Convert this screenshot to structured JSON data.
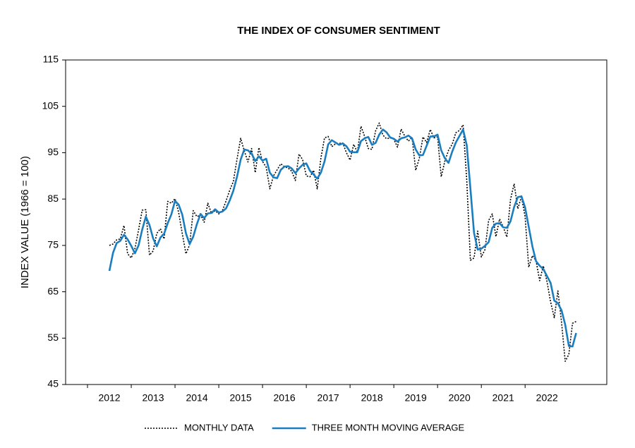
{
  "chart_data": {
    "type": "line",
    "title": "THE INDEX OF CONSUMER SENTIMENT",
    "y_label": "INDEX VALUE (1966 = 100)",
    "categories": [
      "2012",
      null,
      null,
      null,
      null,
      null,
      null,
      null,
      null,
      null,
      null,
      null,
      "2013",
      null,
      null,
      null,
      null,
      null,
      null,
      null,
      null,
      null,
      null,
      null,
      "2014",
      null,
      null,
      null,
      null,
      null,
      null,
      null,
      null,
      null,
      null,
      null,
      "2015",
      null,
      null,
      null,
      null,
      null,
      null,
      null,
      null,
      null,
      null,
      null,
      "2016",
      null,
      null,
      null,
      null,
      null,
      null,
      null,
      null,
      null,
      null,
      null,
      "2017",
      null,
      null,
      null,
      null,
      null,
      null,
      null,
      null,
      null,
      null,
      null,
      "2018",
      null,
      null,
      null,
      null,
      null,
      null,
      null,
      null,
      null,
      null,
      null,
      "2019",
      null,
      null,
      null,
      null,
      null,
      null,
      null,
      null,
      null,
      null,
      null,
      "2020",
      null,
      null,
      null,
      null,
      null,
      null,
      null,
      null,
      null,
      null,
      null,
      "2021",
      null,
      null,
      null,
      null,
      null,
      null,
      null,
      null,
      null,
      null,
      null,
      "2022",
      null,
      null,
      null,
      null,
      null,
      null,
      null,
      null
    ],
    "series": [
      {
        "name": "MONTHLY DATA",
        "color": "#000000",
        "dash": "dotted",
        "values": [
          75.0,
          75.3,
          76.2,
          76.4,
          79.3,
          73.2,
          72.3,
          74.3,
          78.3,
          82.6,
          82.7,
          72.9,
          73.8,
          77.6,
          78.6,
          76.4,
          84.5,
          84.1,
          85.1,
          82.1,
          77.5,
          73.2,
          75.1,
          82.5,
          81.2,
          81.6,
          80.0,
          84.1,
          81.9,
          82.5,
          81.8,
          82.5,
          84.6,
          86.9,
          88.8,
          93.6,
          98.1,
          95.4,
          93.0,
          95.9,
          90.7,
          96.1,
          93.1,
          91.9,
          87.2,
          90.0,
          91.3,
          92.6,
          92.0,
          91.7,
          91.0,
          89.0,
          94.7,
          93.5,
          90.0,
          89.8,
          91.2,
          87.2,
          93.8,
          98.2,
          98.5,
          96.3,
          96.9,
          97.0,
          97.1,
          95.0,
          93.4,
          96.8,
          95.1,
          100.7,
          98.5,
          95.9,
          95.7,
          99.7,
          101.4,
          98.8,
          98.0,
          98.2,
          97.9,
          96.2,
          100.1,
          98.6,
          97.5,
          98.3,
          91.2,
          93.8,
          98.4,
          97.2,
          100.0,
          98.2,
          98.4,
          89.8,
          93.2,
          95.5,
          96.8,
          99.3,
          99.8,
          101.0,
          89.1,
          71.8,
          72.3,
          78.1,
          72.5,
          74.1,
          80.4,
          81.8,
          76.9,
          80.7,
          79.0,
          76.8,
          84.9,
          88.3,
          82.9,
          85.5,
          81.2,
          70.3,
          72.8,
          71.7,
          67.4,
          70.6,
          67.2,
          62.8,
          59.4,
          65.2,
          58.4,
          50.0,
          51.5,
          58.2,
          58.6
        ]
      },
      {
        "name": "THREE MONTH MOVING AVERAGE",
        "color": "#1a7dc0",
        "dash": "solid",
        "values": [
          69.5,
          73.4,
          75.5,
          76.0,
          77.3,
          76.3,
          74.9,
          73.3,
          75.0,
          78.4,
          81.2,
          79.4,
          76.5,
          74.8,
          76.7,
          77.5,
          79.8,
          81.7,
          84.6,
          83.8,
          81.6,
          77.6,
          75.3,
          76.9,
          79.6,
          81.8,
          80.9,
          81.9,
          82.0,
          82.8,
          82.1,
          82.3,
          83.0,
          84.7,
          86.8,
          89.8,
          93.5,
          95.7,
          95.5,
          94.8,
          93.2,
          94.2,
          93.3,
          93.7,
          90.7,
          89.7,
          89.5,
          91.3,
          92.0,
          92.1,
          91.6,
          90.6,
          91.6,
          92.4,
          92.7,
          91.1,
          90.3,
          89.4,
          90.7,
          93.1,
          96.8,
          97.7,
          97.2,
          96.7,
          97.0,
          96.4,
          95.2,
          95.1,
          95.1,
          97.5,
          98.1,
          98.4,
          96.7,
          97.1,
          98.9,
          100.0,
          99.4,
          98.3,
          98.0,
          97.4,
          98.1,
          98.3,
          98.7,
          98.1,
          95.7,
          94.4,
          94.5,
          96.5,
          98.5,
          98.5,
          98.9,
          95.5,
          93.8,
          92.8,
          95.2,
          97.2,
          98.6,
          100.0,
          96.6,
          87.3,
          77.7,
          74.1,
          74.3,
          74.9,
          75.7,
          78.8,
          79.7,
          79.8,
          78.9,
          78.8,
          80.2,
          83.3,
          85.4,
          85.6,
          83.2,
          79.0,
          74.8,
          71.6,
          70.6,
          69.9,
          68.4,
          66.9,
          63.1,
          62.5,
          61.0,
          57.9,
          53.3,
          53.2,
          56.1
        ]
      }
    ],
    "ylim": [
      45,
      115
    ],
    "yticks": [
      45,
      55,
      65,
      75,
      85,
      95,
      105,
      115
    ],
    "grid": false,
    "legend": "bottom"
  }
}
